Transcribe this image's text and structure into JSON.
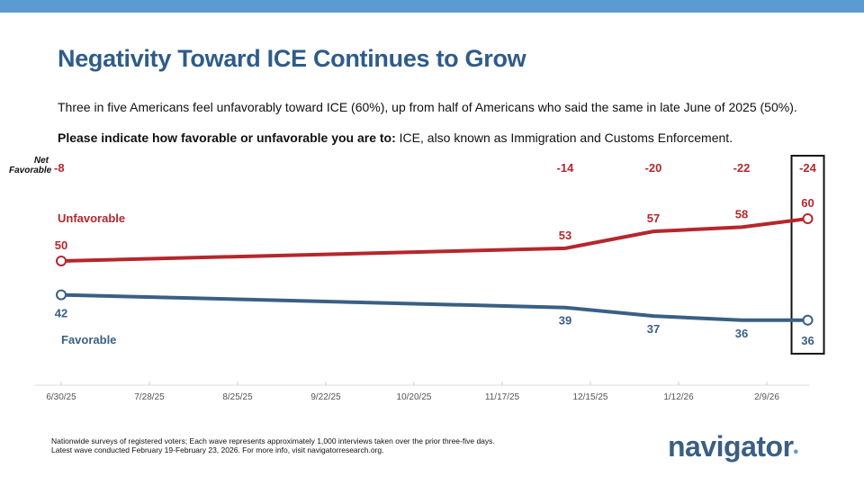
{
  "title": "Negativity Toward ICE Continues to Grow",
  "subtitle": "Three in five Americans feel unfavorably toward ICE (60%), up from half of Americans who said the same in late June of 2025 (50%).",
  "question_bold": "Please indicate how favorable or unfavorable you are to:",
  "question_rest": " ICE, also known as Immigration and Customs Enforcement.",
  "footnote": [
    "Nationwide surveys of registered voters; Each wave represents approximately 1,000 interviews taken over the prior three-five days.",
    "Latest wave conducted February 19-February 23, 2026. For more info, visit navigatorresearch.org."
  ],
  "logo": "navigator",
  "chart_data": {
    "type": "line",
    "x": [
      "2025-06-30",
      "2025-12-07",
      "2026-01-04",
      "2026-02-01",
      "2026-02-22"
    ],
    "x_ticks": [
      "6/30/25",
      "7/28/25",
      "8/25/25",
      "9/22/25",
      "10/20/25",
      "11/17/25",
      "12/15/25",
      "1/12/26",
      "2/9/26"
    ],
    "net_label": [
      "Net",
      "Favorable"
    ],
    "net_values": [
      "-8",
      "-14",
      "-20",
      "-22",
      "-24"
    ],
    "series": [
      {
        "name": "Unfavorable",
        "values": [
          50,
          53,
          57,
          58,
          60
        ],
        "color": "#b5272d"
      },
      {
        "name": "Favorable",
        "values": [
          42,
          39,
          37,
          36,
          36
        ],
        "color": "#3a5f85"
      }
    ],
    "highlight": "latest wave",
    "grid": false
  }
}
